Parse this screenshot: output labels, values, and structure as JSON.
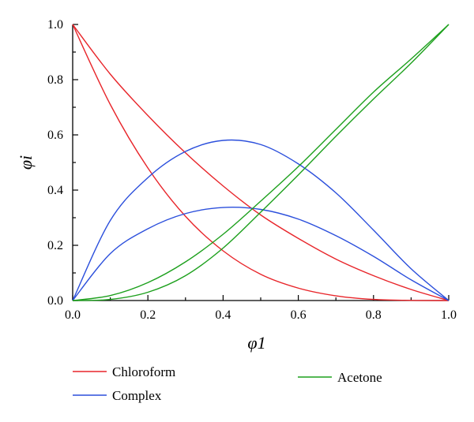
{
  "chart_data": {
    "type": "line",
    "xlabel": "φ1",
    "ylabel": "φi",
    "xlim": [
      0,
      1
    ],
    "ylim": [
      0,
      1
    ],
    "x_ticks": [
      "0.0",
      "0.2",
      "0.4",
      "0.6",
      "0.8",
      "1.0"
    ],
    "y_ticks": [
      "0.0",
      "0.2",
      "0.4",
      "0.6",
      "0.8",
      "1.0"
    ],
    "grid": false,
    "legend_position": "bottom",
    "x": [
      0.0,
      0.1,
      0.2,
      0.3,
      0.4,
      0.5,
      0.6,
      0.7,
      0.8,
      0.9,
      1.0
    ],
    "series": [
      {
        "name": "Chloroform",
        "color": "#e8252a",
        "curves": [
          [
            1.0,
            0.82,
            0.67,
            0.535,
            0.415,
            0.31,
            0.225,
            0.15,
            0.09,
            0.04,
            0.0
          ],
          [
            1.0,
            0.71,
            0.48,
            0.305,
            0.18,
            0.095,
            0.045,
            0.017,
            0.004,
            0.0005,
            0.0
          ]
        ]
      },
      {
        "name": "Complex",
        "color": "#2b4fdc",
        "curves": [
          [
            0.0,
            0.29,
            0.445,
            0.54,
            0.58,
            0.565,
            0.495,
            0.39,
            0.255,
            0.115,
            0.0
          ],
          [
            0.0,
            0.17,
            0.26,
            0.315,
            0.337,
            0.33,
            0.295,
            0.235,
            0.16,
            0.075,
            0.0
          ]
        ]
      },
      {
        "name": "Acetone",
        "color": "#1da01d",
        "curves": [
          [
            0.0,
            0.018,
            0.065,
            0.14,
            0.24,
            0.36,
            0.485,
            0.62,
            0.755,
            0.875,
            1.0
          ],
          [
            0.0,
            0.004,
            0.03,
            0.09,
            0.19,
            0.32,
            0.455,
            0.595,
            0.73,
            0.86,
            1.0
          ]
        ]
      }
    ]
  }
}
